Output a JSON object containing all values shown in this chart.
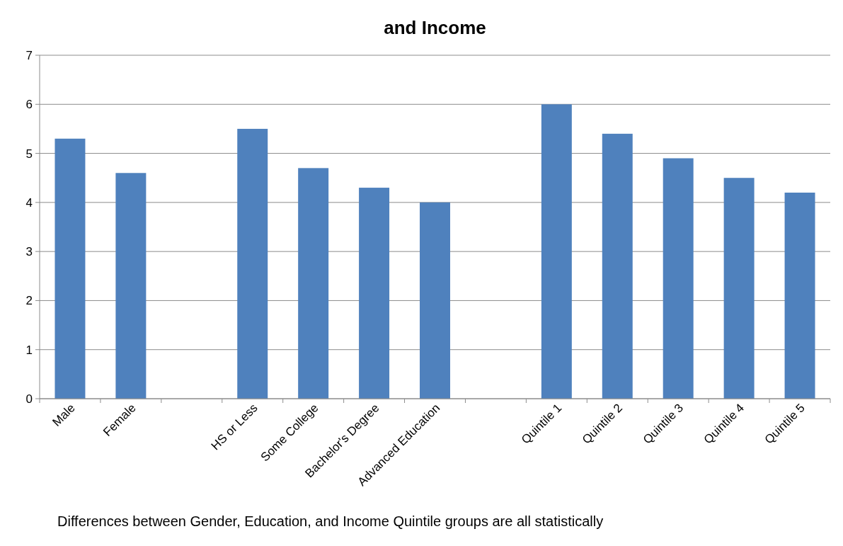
{
  "chart_data": {
    "type": "bar",
    "title": "and Income",
    "categories": [
      "Male",
      "Female",
      null,
      "HS or Less",
      "Some College",
      "Bachelor's Degree",
      "Advanced Education",
      null,
      "Quintile 1",
      "Quintile 2",
      "Quintile 3",
      "Quintile 4",
      "Quintile 5"
    ],
    "values": [
      5.3,
      4.6,
      null,
      5.5,
      4.7,
      4.3,
      4.0,
      null,
      6.0,
      5.4,
      4.9,
      4.5,
      4.2
    ],
    "color": "#4f81bd",
    "ylim": [
      0,
      7
    ],
    "yticks": [
      0,
      1,
      2,
      3,
      4,
      5,
      6,
      7
    ],
    "grid": "y",
    "annotations": [
      "Differences between Gender, Education, and Income Quintile groups are all statistically"
    ]
  }
}
